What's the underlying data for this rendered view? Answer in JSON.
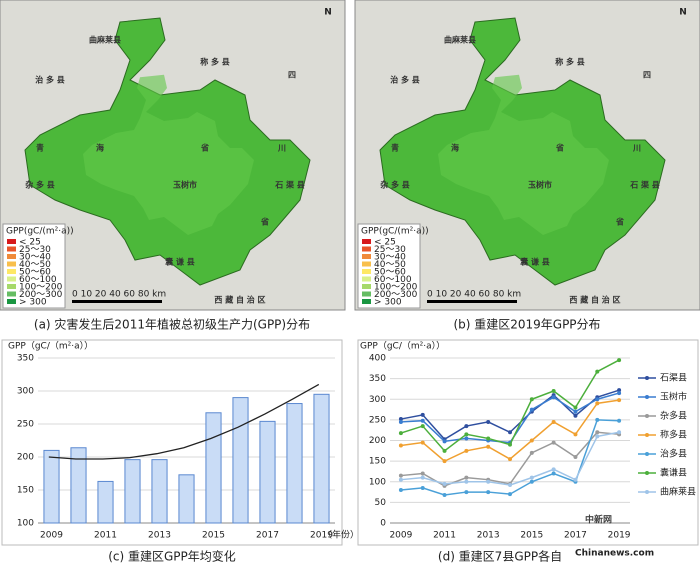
{
  "maps": [
    {
      "caption": "(a) 灾害发生后2011年植被总初级生产力(GPP)分布"
    },
    {
      "caption": "(b) 重建区2019年GPP分布"
    }
  ],
  "map_labels": [
    "曲麻莱县",
    "称 多 县",
    "治 多 县",
    "四",
    "川",
    "省",
    "青",
    "海",
    "省",
    "杂 多 县",
    "玉树市",
    "石 渠 县",
    "囊 谦 县",
    "西 藏 自 治 区"
  ],
  "map_legend": {
    "title": "GPP(gC/(m²·a))",
    "items": [
      {
        "label": "< 25",
        "color": "#d7191c"
      },
      {
        "label": "25～30",
        "color": "#e8552b"
      },
      {
        "label": "30～40",
        "color": "#f08a3a"
      },
      {
        "label": "40～50",
        "color": "#f8bf4c"
      },
      {
        "label": "50～60",
        "color": "#fee865"
      },
      {
        "label": "60～100",
        "color": "#d9f08a"
      },
      {
        "label": "100～200",
        "color": "#a6d96a"
      },
      {
        "label": "200～300",
        "color": "#66bd63"
      },
      {
        "label": "> 300",
        "color": "#1a9641"
      }
    ]
  },
  "map_scale": "0 10 20 40 60 80 km",
  "north": "N",
  "chart_data": [
    {
      "type": "bar",
      "title": "(c) 重建区GPP年均变化",
      "y_label": "GPP（gC/（m²·a））",
      "x_label": "（年份）",
      "categories": [
        "2009",
        null,
        "2011",
        null,
        "2013",
        null,
        "2015",
        null,
        "2017",
        null,
        "2019"
      ],
      "values": [
        210,
        214,
        163,
        196,
        196,
        173,
        267,
        290,
        254,
        281,
        295
      ],
      "color": "#c9dcf6",
      "edge": "#5a88d0",
      "trend": [
        200,
        197,
        197,
        199,
        205,
        214,
        228,
        245,
        265,
        287,
        310
      ],
      "ylim": [
        100,
        350
      ],
      "yticks": [
        100,
        150,
        200,
        250,
        300,
        350
      ],
      "grid": true
    },
    {
      "type": "line",
      "title": "(d) 重建区7县GPP各自",
      "y_label": "GPP（gC/（m²·a））",
      "categories": [
        "2009",
        null,
        "2011",
        null,
        "2013",
        null,
        "2015",
        null,
        "2017",
        null,
        "2019"
      ],
      "ylim": [
        0,
        400
      ],
      "yticks": [
        0,
        50,
        100,
        150,
        200,
        250,
        300,
        350,
        400
      ],
      "grid": true,
      "series": [
        {
          "name": "石渠县",
          "color": "#2f4f9f",
          "values": [
            252,
            262,
            203,
            235,
            245,
            220,
            270,
            310,
            260,
            305,
            322
          ]
        },
        {
          "name": "玉树市",
          "color": "#3a7dd0",
          "values": [
            245,
            248,
            198,
            205,
            200,
            195,
            275,
            305,
            270,
            300,
            315
          ]
        },
        {
          "name": "杂多县",
          "color": "#9a9a9a",
          "values": [
            115,
            120,
            90,
            110,
            105,
            95,
            170,
            195,
            160,
            220,
            215
          ]
        },
        {
          "name": "称多县",
          "color": "#f0a030",
          "values": [
            188,
            195,
            150,
            175,
            185,
            155,
            200,
            245,
            215,
            290,
            298
          ]
        },
        {
          "name": "治多县",
          "color": "#4aa0d8",
          "values": [
            80,
            85,
            68,
            75,
            75,
            70,
            100,
            120,
            100,
            250,
            248
          ]
        },
        {
          "name": "囊谦县",
          "color": "#4caf3c",
          "values": [
            218,
            235,
            175,
            215,
            205,
            190,
            300,
            320,
            280,
            367,
            395
          ]
        },
        {
          "name": "曲麻莱县",
          "color": "#9fc4e8",
          "values": [
            105,
            110,
            95,
            100,
            100,
            92,
            110,
            130,
            105,
            210,
            220
          ]
        }
      ]
    }
  ],
  "watermark": {
    "main": "中新网",
    "sub": "Chinanews.com"
  }
}
